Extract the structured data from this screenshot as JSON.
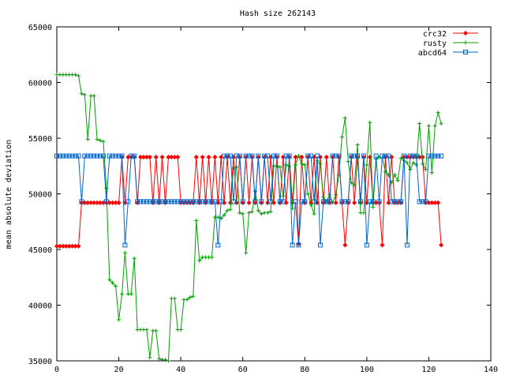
{
  "chart_data": {
    "type": "line",
    "title": "Hash size 262143",
    "xlabel": "",
    "ylabel": "mean absolute deviation",
    "xlim": [
      0,
      140
    ],
    "ylim": [
      35000,
      65000
    ],
    "xticks": [
      0,
      20,
      40,
      60,
      80,
      100,
      120,
      140
    ],
    "yticks": [
      35000,
      40000,
      45000,
      50000,
      55000,
      60000,
      65000
    ],
    "legend_position": "top-right",
    "series": [
      {
        "name": "crc32",
        "color": "#ff0000",
        "marker": "diamond",
        "values": [
          45300,
          45300,
          45300,
          45300,
          45300,
          45300,
          45300,
          45300,
          49200,
          49200,
          49200,
          49200,
          49200,
          49200,
          49200,
          49200,
          49200,
          49200,
          49200,
          49200,
          49200,
          53300,
          49200,
          53300,
          53300,
          53300,
          49200,
          53300,
          53300,
          53300,
          53300,
          49200,
          53300,
          49200,
          53300,
          49200,
          53300,
          53300,
          53300,
          53300,
          49200,
          49200,
          49200,
          49200,
          49200,
          53300,
          49200,
          53300,
          49200,
          53300,
          49200,
          53300,
          49200,
          53300,
          49200,
          53300,
          49200,
          53300,
          49200,
          53300,
          49200,
          53300,
          49200,
          53300,
          49200,
          53300,
          49200,
          53300,
          49200,
          53300,
          49200,
          53300,
          49200,
          53300,
          49200,
          53300,
          49200,
          53300,
          45500,
          53300,
          49200,
          53300,
          49200,
          53300,
          49200,
          53300,
          49200,
          53300,
          49200,
          53300,
          49200,
          53300,
          49200,
          45400,
          49200,
          53300,
          49200,
          53300,
          49200,
          53300,
          49200,
          53300,
          49200,
          49200,
          49200,
          45400,
          53300,
          49200,
          53300,
          49200,
          49200,
          49200,
          53300,
          53300,
          53300,
          53300,
          53300,
          53300,
          53300,
          49200,
          49200,
          49200,
          49200,
          49200,
          45400
        ]
      },
      {
        "name": "rusty",
        "color": "#00a000",
        "marker": "plus",
        "values": [
          60700,
          60700,
          60700,
          60700,
          60700,
          60700,
          60700,
          60600,
          59000,
          58900,
          54900,
          58800,
          58800,
          54900,
          54800,
          54700,
          50500,
          42300,
          42000,
          41700,
          38700,
          41000,
          44700,
          41000,
          41000,
          44200,
          37800,
          37800,
          37800,
          37800,
          35300,
          37700,
          37700,
          35200,
          35100,
          35100,
          35000,
          40600,
          40600,
          37800,
          37800,
          40500,
          40500,
          40700,
          40800,
          47600,
          44000,
          44300,
          44300,
          44300,
          44300,
          47900,
          47900,
          47800,
          48100,
          48500,
          48600,
          52300,
          52400,
          48300,
          48200,
          44700,
          48300,
          48400,
          50200,
          48500,
          48200,
          48300,
          48300,
          48400,
          52500,
          52500,
          52400,
          49800,
          52600,
          52500,
          48700,
          52600,
          53400,
          52700,
          52600,
          50000,
          49000,
          48200,
          53000,
          52700,
          49700,
          49300,
          49900,
          49200,
          49900,
          51700,
          55100,
          56800,
          52900,
          51000,
          50800,
          54400,
          48300,
          48300,
          52600,
          56400,
          48800,
          53100,
          53300,
          53200,
          52000,
          51700,
          51000,
          51700,
          51200,
          53200,
          53000,
          52800,
          52200,
          52800,
          52600,
          56300,
          52700,
          52200,
          56100,
          51900,
          56100,
          57300,
          56300
        ]
      },
      {
        "name": "abcd64",
        "color": "#0066cc",
        "marker": "square",
        "values": [
          53400,
          53400,
          53400,
          53400,
          53400,
          53400,
          53400,
          53400,
          49300,
          53400,
          53400,
          53400,
          53400,
          53400,
          53400,
          53400,
          49300,
          53400,
          53400,
          53400,
          53400,
          53400,
          45400,
          49300,
          53400,
          53400,
          49300,
          49300,
          49300,
          49300,
          49300,
          49300,
          49300,
          49300,
          49300,
          49300,
          49300,
          49300,
          49300,
          49300,
          49300,
          49300,
          49300,
          49300,
          49300,
          49300,
          49300,
          49300,
          49300,
          49300,
          49300,
          49300,
          45400,
          49300,
          53400,
          53400,
          53400,
          49300,
          53400,
          53400,
          49300,
          53400,
          53400,
          53400,
          49300,
          53400,
          49300,
          53400,
          53400,
          49300,
          53400,
          53400,
          49300,
          49300,
          53400,
          53400,
          45400,
          49300,
          45400,
          49300,
          49300,
          53400,
          53400,
          49300,
          53400,
          45400,
          49300,
          49300,
          49300,
          53400,
          53400,
          53400,
          49300,
          49300,
          49300,
          53400,
          53400,
          53400,
          49300,
          53400,
          45400,
          49300,
          49300,
          53400,
          49300,
          53400,
          53400,
          53400,
          49300,
          49300,
          49300,
          49300,
          53400,
          45400,
          53400,
          53400,
          53400,
          49300,
          49300,
          49300,
          53400,
          53400,
          53400,
          53400,
          53400
        ]
      }
    ]
  }
}
